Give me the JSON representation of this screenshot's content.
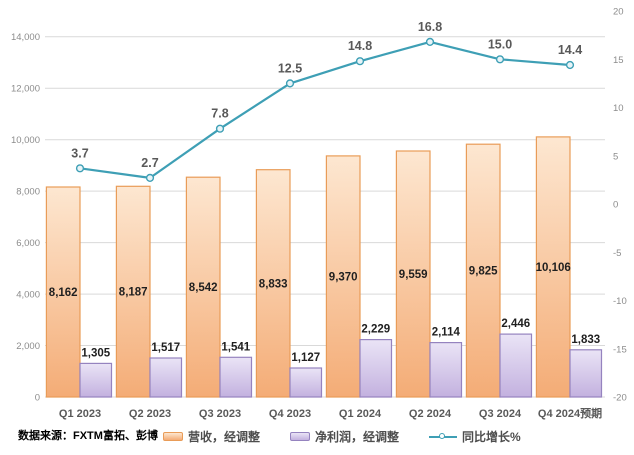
{
  "source_note": "数据来源：FXTM富拓、彭博",
  "colors": {
    "revenue_fill_top": "#FDE7D1",
    "revenue_fill_bottom": "#F4AC76",
    "revenue_border": "#E99C58",
    "profit_fill_top": "#EAE4F6",
    "profit_fill_bottom": "#C3B1DF",
    "profit_border": "#9583BF",
    "line": "#3E9FB5",
    "marker_fill": "#E8F4F8",
    "grid": "#D9D9D9",
    "axis_text": "#8C8C8C",
    "bar_label_text": "#1F1F1F",
    "line_label_text": "#595959",
    "x_label_text": "#595959"
  },
  "chart_data": {
    "type": "bar",
    "subtype": "combo-bar-line",
    "title": "",
    "xlabel": "",
    "ylabel": "",
    "grid": true,
    "legend_position": "bottom",
    "categories": [
      "Q1 2023",
      "Q2 2023",
      "Q3 2023",
      "Q4 2023",
      "Q1 2024",
      "Q2 2024",
      "Q3 2024",
      "Q4 2024预期"
    ],
    "series": [
      {
        "name": "营收，经调整",
        "type": "bar",
        "axis": "left",
        "values": [
          8162,
          8187,
          8542,
          8833,
          9370,
          9559,
          9825,
          10106
        ],
        "labels": [
          "8,162",
          "8,187",
          "8,542",
          "8,833",
          "9,370",
          "9,559",
          "9,825",
          "10,106"
        ]
      },
      {
        "name": "净利润，经调整",
        "type": "bar",
        "axis": "left",
        "values": [
          1305,
          1517,
          1541,
          1127,
          2229,
          2114,
          2446,
          1833
        ],
        "labels": [
          "1,305",
          "1,517",
          "1,541",
          "1,127",
          "2,229",
          "2,114",
          "2,446",
          "1,833"
        ]
      },
      {
        "name": "同比增长%",
        "type": "line",
        "axis": "right",
        "values": [
          3.7,
          2.7,
          7.8,
          12.5,
          14.8,
          16.8,
          15.0,
          14.4
        ],
        "labels": [
          "3.7",
          "2.7",
          "7.8",
          "12.5",
          "14.8",
          "16.8",
          "15.0",
          "14.4"
        ]
      }
    ],
    "left_axis": {
      "min": 0,
      "max": 15000,
      "tick_values": [
        0,
        2000,
        4000,
        6000,
        8000,
        10000,
        12000,
        14000
      ],
      "tick_labels": [
        "0",
        "2,000",
        "4,000",
        "6,000",
        "8,000",
        "10,000",
        "12,000",
        "14,000"
      ]
    },
    "right_axis": {
      "min": -20,
      "max": 20,
      "tick_values": [
        20,
        15,
        10,
        5,
        0,
        -5,
        -10,
        -15,
        -20
      ],
      "tick_labels": [
        "20",
        "15",
        "10",
        "5",
        "0",
        "-5",
        "-10",
        "-15",
        "-20"
      ]
    }
  }
}
